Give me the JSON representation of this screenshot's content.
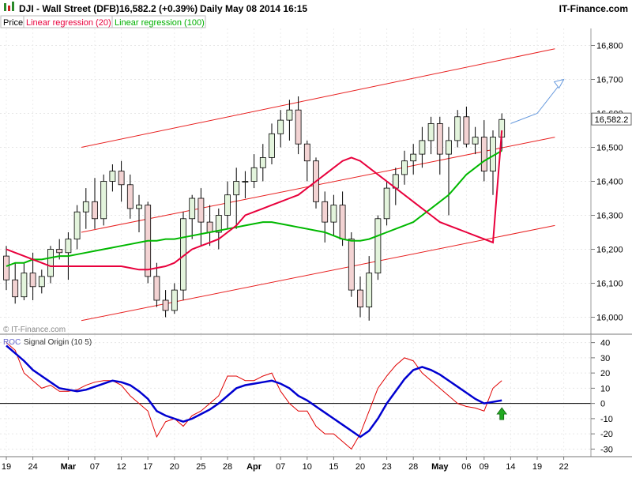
{
  "header": {
    "symbol": "DJI - Wall Street (DFB)",
    "quote": "16,582.2 (+0.39%)",
    "period": "Daily",
    "datetime": "May 08 2014 16:15",
    "brand": "IT-Finance.com"
  },
  "legend": {
    "price": "Price",
    "lr20": "Linear regression (20)",
    "lr100": "Linear regression (100)"
  },
  "watermark": "© IT-Finance.com",
  "roc_legend": {
    "roc": "ROC",
    "rest": "Signal Origin (10 5)"
  },
  "current_price_label": "16,582.2",
  "colors": {
    "up_candle": "#e3f4dc",
    "down_candle": "#f3d3d3",
    "lr20": "#e8003c",
    "lr100": "#00b800",
    "signal_ma": "#5b5fd6",
    "channel": "#e82020",
    "projection": "#6699dd",
    "roc_fast": "#e00000",
    "roc_slow": "#0000d0",
    "arrow": "#22aa22"
  },
  "chart_data": [
    {
      "type": "candlestick",
      "ylim": [
        15950,
        16850
      ],
      "yticks": [
        16000,
        16100,
        16200,
        16300,
        16400,
        16500,
        16600,
        16700,
        16800
      ],
      "ytick_labels": [
        "16,000",
        "16,100",
        "16,200",
        "16,300",
        "16,400",
        "16,500",
        "16,600",
        "16,700",
        "16,800"
      ],
      "x_labels": [
        {
          "i": 0,
          "label": "19"
        },
        {
          "i": 3,
          "label": "24"
        },
        {
          "i": 7,
          "label": "Mar"
        },
        {
          "i": 10,
          "label": "07"
        },
        {
          "i": 13,
          "label": "12"
        },
        {
          "i": 16,
          "label": "17"
        },
        {
          "i": 19,
          "label": "20"
        },
        {
          "i": 22,
          "label": "25"
        },
        {
          "i": 25,
          "label": "28"
        },
        {
          "i": 28,
          "label": "Apr"
        },
        {
          "i": 31,
          "label": "07"
        },
        {
          "i": 34,
          "label": "10"
        },
        {
          "i": 37,
          "label": "15"
        },
        {
          "i": 40,
          "label": "20"
        },
        {
          "i": 43,
          "label": "23"
        },
        {
          "i": 46,
          "label": "28"
        },
        {
          "i": 49,
          "label": "May"
        },
        {
          "i": 52,
          "label": "06"
        },
        {
          "i": 54,
          "label": "09"
        },
        {
          "i": 57,
          "label": "14"
        },
        {
          "i": 60,
          "label": "19"
        },
        {
          "i": 63,
          "label": "22"
        }
      ],
      "candles": [
        [
          16180,
          16210,
          16080,
          16110
        ],
        [
          16110,
          16160,
          16040,
          16060
        ],
        [
          16060,
          16160,
          16050,
          16130
        ],
        [
          16130,
          16190,
          16050,
          16090
        ],
        [
          16090,
          16140,
          16070,
          16120
        ],
        [
          16120,
          16210,
          16100,
          16200
        ],
        [
          16200,
          16230,
          16170,
          16190
        ],
        [
          16190,
          16250,
          16110,
          16230
        ],
        [
          16230,
          16330,
          16200,
          16310
        ],
        [
          16310,
          16380,
          16260,
          16340
        ],
        [
          16340,
          16410,
          16260,
          16290
        ],
        [
          16290,
          16420,
          16270,
          16400
        ],
        [
          16400,
          16450,
          16370,
          16430
        ],
        [
          16430,
          16460,
          16340,
          16390
        ],
        [
          16390,
          16420,
          16290,
          16320
        ],
        [
          16320,
          16360,
          16250,
          16330
        ],
        [
          16330,
          16340,
          16100,
          16120
        ],
        [
          16120,
          16160,
          16030,
          16050
        ],
        [
          16050,
          16080,
          16000,
          16020
        ],
        [
          16020,
          16100,
          16010,
          16080
        ],
        [
          16080,
          16310,
          16050,
          16290
        ],
        [
          16290,
          16360,
          16230,
          16350
        ],
        [
          16350,
          16380,
          16210,
          16280
        ],
        [
          16280,
          16330,
          16210,
          16250
        ],
        [
          16250,
          16320,
          16200,
          16300
        ],
        [
          16300,
          16400,
          16260,
          16360
        ],
        [
          16360,
          16440,
          16260,
          16400
        ],
        [
          16400,
          16430,
          16350,
          16400
        ],
        [
          16400,
          16480,
          16380,
          16440
        ],
        [
          16440,
          16510,
          16400,
          16470
        ],
        [
          16470,
          16570,
          16450,
          16540
        ],
        [
          16540,
          16610,
          16500,
          16580
        ],
        [
          16580,
          16640,
          16520,
          16610
        ],
        [
          16610,
          16650,
          16480,
          16510
        ],
        [
          16510,
          16520,
          16400,
          16460
        ],
        [
          16460,
          16470,
          16320,
          16340
        ],
        [
          16340,
          16370,
          16220,
          16280
        ],
        [
          16280,
          16360,
          16240,
          16330
        ],
        [
          16330,
          16370,
          16210,
          16230
        ],
        [
          16230,
          16250,
          16060,
          16080
        ],
        [
          16080,
          16120,
          16000,
          16030
        ],
        [
          16030,
          16180,
          15990,
          16130
        ],
        [
          16130,
          16300,
          16110,
          16290
        ],
        [
          16290,
          16400,
          16270,
          16380
        ],
        [
          16380,
          16440,
          16330,
          16420
        ],
        [
          16420,
          16490,
          16390,
          16460
        ],
        [
          16460,
          16510,
          16420,
          16480
        ],
        [
          16480,
          16560,
          16440,
          16520
        ],
        [
          16520,
          16590,
          16480,
          16570
        ],
        [
          16570,
          16590,
          16420,
          16480
        ],
        [
          16480,
          16560,
          16300,
          16520
        ],
        [
          16520,
          16610,
          16500,
          16590
        ],
        [
          16590,
          16620,
          16500,
          16510
        ],
        [
          16510,
          16560,
          16480,
          16530
        ],
        [
          16530,
          16580,
          16400,
          16430
        ],
        [
          16430,
          16550,
          16360,
          16530
        ],
        [
          16530,
          16600,
          16490,
          16582
        ]
      ],
      "lr20": [
        16200,
        16190,
        16180,
        16170,
        16160,
        16150,
        16150,
        16150,
        16150,
        16150,
        16150,
        16150,
        16150,
        16150,
        16145,
        16140,
        16140,
        16145,
        16150,
        16160,
        16180,
        16200,
        16210,
        16220,
        16230,
        16250,
        16270,
        16300,
        16310,
        16320,
        16330,
        16340,
        16350,
        16360,
        16380,
        16400,
        16420,
        16440,
        16460,
        16470,
        16460,
        16440,
        16420,
        16400,
        16380,
        16360,
        16340,
        16320,
        16300,
        16280,
        16270,
        16260,
        16250,
        16240,
        16230,
        16220,
        16550
      ],
      "lr100": [
        16150,
        16160,
        16160,
        16170,
        16170,
        16175,
        16180,
        16180,
        16185,
        16190,
        16195,
        16200,
        16205,
        16210,
        16215,
        16220,
        16225,
        16225,
        16230,
        16230,
        16235,
        16240,
        16245,
        16250,
        16255,
        16260,
        16265,
        16270,
        16275,
        16280,
        16280,
        16275,
        16270,
        16265,
        16260,
        16255,
        16250,
        16240,
        16230,
        16225,
        16225,
        16230,
        16240,
        16250,
        16260,
        16270,
        16280,
        16300,
        16320,
        16340,
        16360,
        16390,
        16420,
        16440,
        16460,
        16475,
        16490
      ],
      "channel_upper": [
        [
          0,
          16500
        ],
        [
          62,
          16790
        ]
      ],
      "channel_mid": [
        [
          0,
          16250
        ],
        [
          62,
          16530
        ]
      ],
      "channel_lower": [
        [
          0,
          15990
        ],
        [
          62,
          16270
        ]
      ],
      "projection": [
        [
          57,
          16570
        ],
        [
          60,
          16600
        ],
        [
          63,
          16700
        ]
      ]
    },
    {
      "type": "line",
      "ylim": [
        -35,
        45
      ],
      "yticks": [
        -30,
        -20,
        -10,
        0,
        10,
        20,
        30,
        40
      ],
      "ytick_labels": [
        "-30",
        "-20",
        "-10",
        "0",
        "10",
        "20",
        "30",
        "40"
      ],
      "series": [
        {
          "values": [
            40,
            35,
            20,
            15,
            10,
            12,
            8,
            8,
            9,
            12,
            14,
            15,
            15,
            12,
            5,
            0,
            -5,
            -22,
            -12,
            -10,
            -15,
            -8,
            -5,
            0,
            5,
            18,
            18,
            15,
            15,
            18,
            20,
            8,
            0,
            -5,
            -5,
            -15,
            -20,
            -20,
            -25,
            -30,
            -20,
            -5,
            10,
            18,
            25,
            30,
            28,
            20,
            15,
            10,
            5,
            0,
            -2,
            -3,
            -5,
            10,
            15
          ]
        },
        {
          "values": [
            38,
            33,
            28,
            22,
            18,
            14,
            10,
            9,
            8,
            9,
            11,
            13,
            15,
            14,
            12,
            8,
            3,
            -5,
            -8,
            -10,
            -12,
            -10,
            -7,
            -4,
            0,
            5,
            10,
            12,
            13,
            14,
            15,
            13,
            10,
            5,
            2,
            -2,
            -6,
            -10,
            -14,
            -18,
            -22,
            -18,
            -10,
            0,
            8,
            16,
            22,
            24,
            22,
            19,
            15,
            11,
            7,
            3,
            0,
            1,
            2
          ]
        }
      ]
    }
  ]
}
